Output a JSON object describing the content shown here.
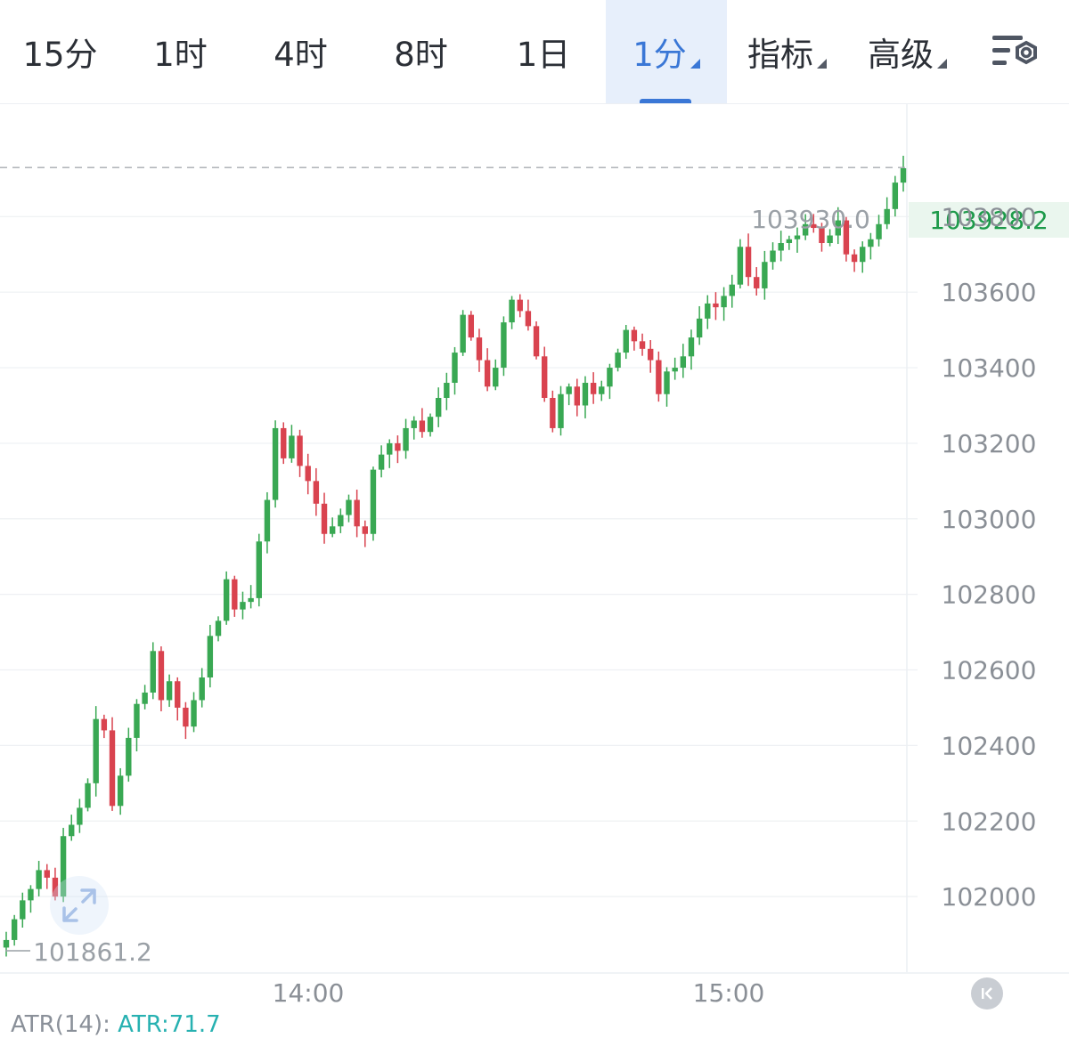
{
  "toolbar": {
    "tabs": [
      {
        "label": "15分"
      },
      {
        "label": "1时"
      },
      {
        "label": "4时"
      },
      {
        "label": "8时"
      },
      {
        "label": "1日"
      },
      {
        "label": "1分",
        "active": true,
        "dropdown": true
      },
      {
        "label": "指标",
        "dropdown": true
      },
      {
        "label": "高级",
        "dropdown": true
      }
    ],
    "settings_icon": "chart-settings-icon"
  },
  "colors": {
    "up": "#39a853",
    "down": "#d9434f",
    "accent": "#3a77d6",
    "grid": "#eef0f3",
    "axis_text": "#8a8f96",
    "last_price": "#1d9a4a"
  },
  "chart_data": {
    "type": "candlestick",
    "interval": "1分",
    "ylim": [
      101800,
      104100
    ],
    "y_ticks": [
      102000,
      102200,
      102400,
      102600,
      102800,
      103000,
      103200,
      103400,
      103600,
      103800
    ],
    "y_tick_labels": [
      "102000",
      "102200",
      "102400",
      "102600",
      "102800",
      "103000",
      "103200",
      "103400",
      "103600",
      "103800"
    ],
    "x_ticks": [
      "14:00",
      "15:00"
    ],
    "high_label": "103930.0",
    "low_label": "101861.2",
    "last_price": "103928.2",
    "closes": [
      101885,
      101940,
      101990,
      102020,
      102070,
      102050,
      102000,
      102160,
      102190,
      102235,
      102300,
      102470,
      102440,
      102240,
      102320,
      102420,
      102510,
      102540,
      102650,
      102520,
      102570,
      102500,
      102450,
      102520,
      102580,
      102690,
      102730,
      102840,
      102760,
      102780,
      102790,
      102940,
      103050,
      103240,
      103160,
      103220,
      103140,
      103100,
      103040,
      102960,
      102980,
      103010,
      103050,
      102980,
      102960,
      103130,
      103170,
      103200,
      103180,
      103240,
      103260,
      103230,
      103270,
      103320,
      103360,
      103440,
      103540,
      103480,
      103420,
      103350,
      103400,
      103520,
      103580,
      103550,
      103510,
      103430,
      103320,
      103240,
      103330,
      103350,
      103300,
      103360,
      103330,
      103350,
      103400,
      103440,
      103500,
      103470,
      103450,
      103420,
      103330,
      103390,
      103400,
      103430,
      103480,
      103530,
      103570,
      103560,
      103590,
      103620,
      103720,
      103640,
      103610,
      103680,
      103710,
      103730,
      103740,
      103750,
      103780,
      103770,
      103730,
      103750,
      103790,
      103700,
      103680,
      103720,
      103740,
      103780,
      103820,
      103890,
      103928
    ],
    "ohlc_note": ""
  },
  "indicator": {
    "label": "ATR(14):",
    "value": "ATR:71.7"
  }
}
